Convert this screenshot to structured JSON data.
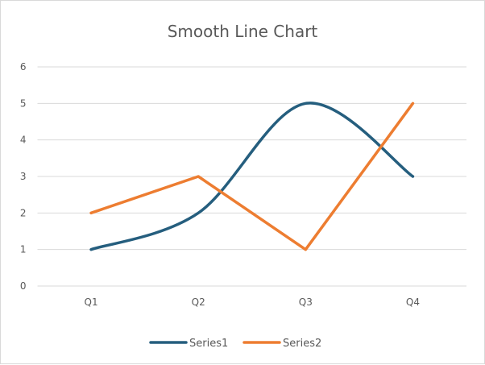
{
  "chart_data": {
    "type": "line",
    "title": "Smooth Line Chart",
    "categories": [
      "Q1",
      "Q2",
      "Q3",
      "Q4"
    ],
    "series": [
      {
        "name": "Series1",
        "values": [
          1,
          2,
          5,
          3
        ],
        "color": "#255e7e",
        "smooth": true
      },
      {
        "name": "Series2",
        "values": [
          2,
          3,
          1,
          5
        ],
        "color": "#ed7d31",
        "smooth": false
      }
    ],
    "ylim": [
      0,
      6
    ],
    "yticks": [
      0,
      1,
      2,
      3,
      4,
      5,
      6
    ],
    "grid": true,
    "legend": "bottom",
    "xlabel": "",
    "ylabel": ""
  }
}
